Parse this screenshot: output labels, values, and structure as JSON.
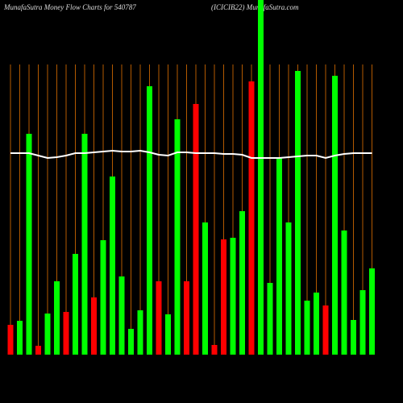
{
  "chart_data": {
    "type": "bar",
    "title": "MunafaSutra  Money Flow  Charts for 540787",
    "subtitle": "(ICICIB22) MunafaSutra.com",
    "categories": [
      null,
      null,
      null,
      null,
      null,
      null,
      null,
      null,
      null,
      null,
      null,
      null,
      null,
      null,
      null,
      null,
      null,
      null,
      null,
      null,
      null,
      null,
      null,
      null,
      null,
      null,
      null,
      null,
      null,
      null,
      null,
      null,
      null,
      null,
      null,
      null,
      null,
      null,
      null,
      null
    ],
    "values": [
      37,
      42,
      274,
      11,
      51,
      91,
      53,
      125,
      274,
      71,
      142,
      221,
      97,
      32,
      55,
      333,
      91,
      50,
      292,
      91,
      311,
      164,
      12,
      143,
      145,
      178,
      339,
      440,
      89,
      244,
      164,
      352,
      67,
      77,
      61,
      346,
      154,
      43,
      80,
      107
    ],
    "colors": [
      "#ff0000",
      "#00ff00",
      "#00ff00",
      "#ff0000",
      "#00ff00",
      "#00ff00",
      "#ff0000",
      "#00ff00",
      "#00ff00",
      "#ff0000",
      "#00ff00",
      "#00ff00",
      "#00ff00",
      "#00ff00",
      "#00ff00",
      "#00ff00",
      "#ff0000",
      "#00ff00",
      "#00ff00",
      "#ff0000",
      "#ff0000",
      "#00ff00",
      "#ff0000",
      "#ff0000",
      "#00ff00",
      "#00ff00",
      "#ff0000",
      "#00ff00",
      "#00ff00",
      "#00ff00",
      "#00ff00",
      "#00ff00",
      "#00ff00",
      "#00ff00",
      "#ff0000",
      "#00ff00",
      "#00ff00",
      "#00ff00",
      "#00ff00",
      "#00ff00"
    ],
    "line": {
      "color": "#ffffff",
      "values": [
        250,
        250,
        250,
        247,
        244,
        245,
        247,
        250,
        250,
        251,
        252,
        253,
        252,
        252,
        253,
        251,
        248,
        247,
        251,
        251,
        250,
        250,
        250,
        249,
        249,
        248,
        244,
        244,
        244,
        244,
        245,
        246,
        247,
        247,
        244,
        247,
        249,
        250,
        250,
        250
      ]
    },
    "ylim": [
      0,
      440
    ]
  }
}
